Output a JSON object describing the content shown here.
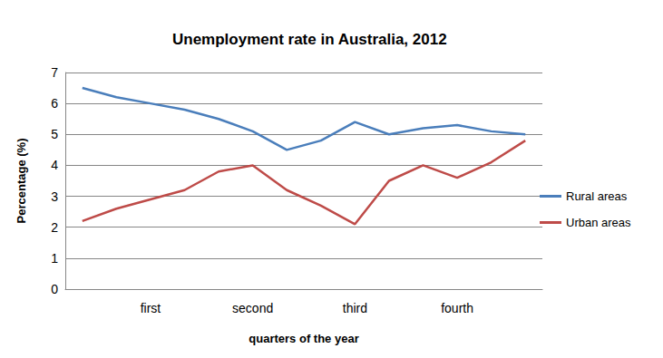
{
  "chart_data": {
    "type": "line",
    "title": "Unemployment rate in Australia, 2012",
    "x_label": "quarters of the year",
    "y_label": "Percentage (%)",
    "categories": [
      null,
      null,
      "first",
      null,
      null,
      "second",
      null,
      null,
      "third",
      null,
      null,
      "fourth",
      null,
      null
    ],
    "series": [
      {
        "name": "Rural areas",
        "color": "#4a7ebb",
        "values": [
          6.5,
          6.2,
          6.0,
          5.8,
          5.5,
          5.1,
          4.5,
          4.8,
          5.4,
          5.0,
          5.2,
          5.3,
          5.1,
          5.0
        ]
      },
      {
        "name": "Urban areas",
        "color": "#be4b48",
        "values": [
          2.2,
          2.6,
          2.9,
          3.2,
          3.8,
          4.0,
          3.2,
          2.7,
          2.1,
          3.5,
          4.0,
          3.6,
          4.1,
          4.8
        ]
      }
    ],
    "ylim": [
      0,
      7
    ],
    "yticks": [
      0,
      1,
      2,
      3,
      4,
      5,
      6,
      7
    ],
    "grid": true,
    "legend": "right"
  }
}
